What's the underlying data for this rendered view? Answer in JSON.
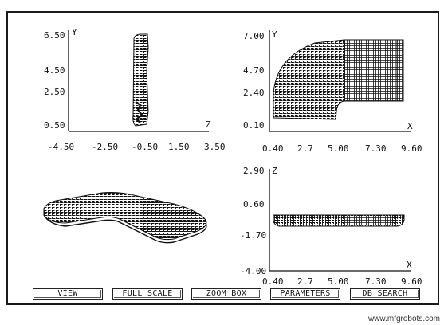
{
  "plots": {
    "yz": {
      "y_label": "Y",
      "z_label": "Z",
      "y_ticks": [
        "6.50",
        "4.50",
        "2.50",
        "0.50"
      ],
      "z_ticks": [
        "-4.50",
        "-2.50",
        "-0.50",
        "1.50",
        "3.50"
      ]
    },
    "xy": {
      "y_label": "Y",
      "x_label": "X",
      "y_ticks": [
        "7.00",
        "4.70",
        "2.40",
        "0.10"
      ],
      "x_ticks": [
        "0.40",
        "2.7",
        "5.00",
        "7.30",
        "9.60"
      ]
    },
    "xz": {
      "z_label": "Z",
      "x_label": "X",
      "z_ticks": [
        "2.90",
        "0.60",
        "-1.70",
        "-4.00"
      ],
      "x_ticks": [
        "0.40",
        "2.7",
        "5.00",
        "7.30",
        "9.60"
      ]
    }
  },
  "buttons": {
    "view": "VIEW",
    "full_scale": "FULL SCALE",
    "zoom_box": "ZOOM BOX",
    "parameters": "PARAMETERS",
    "db_search": "DB SEARCH"
  },
  "watermark": "www.mfgrobots.com"
}
